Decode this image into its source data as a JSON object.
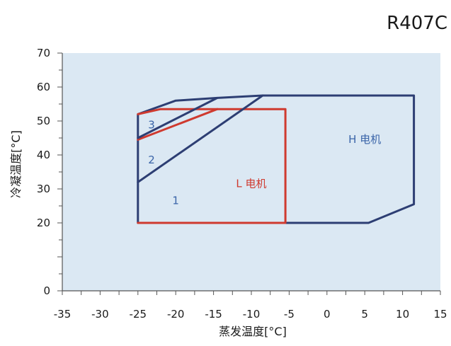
{
  "chart_data": {
    "type": "line",
    "title": "R407C",
    "xlabel": "蒸发温度[°C]",
    "ylabel": "冷凝温度[°C]",
    "xlim": [
      -35,
      15
    ],
    "ylim": [
      0,
      70
    ],
    "x_ticks": [
      "-35",
      "-30",
      "-25",
      "-20",
      "-15",
      "-10",
      "-5",
      "0",
      "5",
      "10",
      "15"
    ],
    "y_ticks": [
      "0",
      "20",
      "30",
      "40",
      "50",
      "60",
      "70"
    ],
    "grid": false,
    "colors": {
      "plot_bg": "#dbe8f3",
      "h_motor": "#2d3e73",
      "l_motor": "#cf3a2f",
      "region_label": "#3a64a8"
    },
    "series": [
      {
        "name": "H 电机",
        "color": "#2d3e73",
        "points": [
          [
            -25,
            20
          ],
          [
            5.5,
            20
          ],
          [
            11.5,
            25.5
          ],
          [
            11.5,
            57.5
          ],
          [
            -8.5,
            57.5
          ],
          [
            -14.5,
            56.8
          ],
          [
            -20,
            56
          ],
          [
            -25,
            52
          ],
          [
            -25,
            20
          ]
        ]
      },
      {
        "name": "L 电机",
        "color": "#cf3a2f",
        "points": [
          [
            -25,
            20
          ],
          [
            -5.5,
            20
          ],
          [
            -5.5,
            53.5
          ],
          [
            -22,
            53.5
          ],
          [
            -25,
            52
          ]
        ]
      },
      {
        "name": "",
        "color": "#cf3a2f",
        "points": [
          [
            -25,
            44.5
          ],
          [
            -14.5,
            53.5
          ]
        ]
      },
      {
        "name": "",
        "color": "#2d3e73",
        "points": [
          [
            -25,
            32
          ],
          [
            -8.5,
            57.5
          ]
        ]
      },
      {
        "name": "",
        "color": "#2d3e73",
        "points": [
          [
            -25,
            45
          ],
          [
            -14.5,
            56.8
          ]
        ]
      }
    ],
    "annotations": [
      {
        "text": "H 电机",
        "x": 5,
        "y": 43.5,
        "color": "#3a64a8"
      },
      {
        "text": "L 电机",
        "x": -10,
        "y": 30.5,
        "color": "#cf3a2f"
      },
      {
        "text": "1",
        "x": -20,
        "y": 25.5,
        "color": "#3a64a8"
      },
      {
        "text": "2",
        "x": -23.2,
        "y": 37.5,
        "color": "#3a64a8"
      },
      {
        "text": "3",
        "x": -23.2,
        "y": 47.8,
        "color": "#3a64a8"
      }
    ]
  }
}
